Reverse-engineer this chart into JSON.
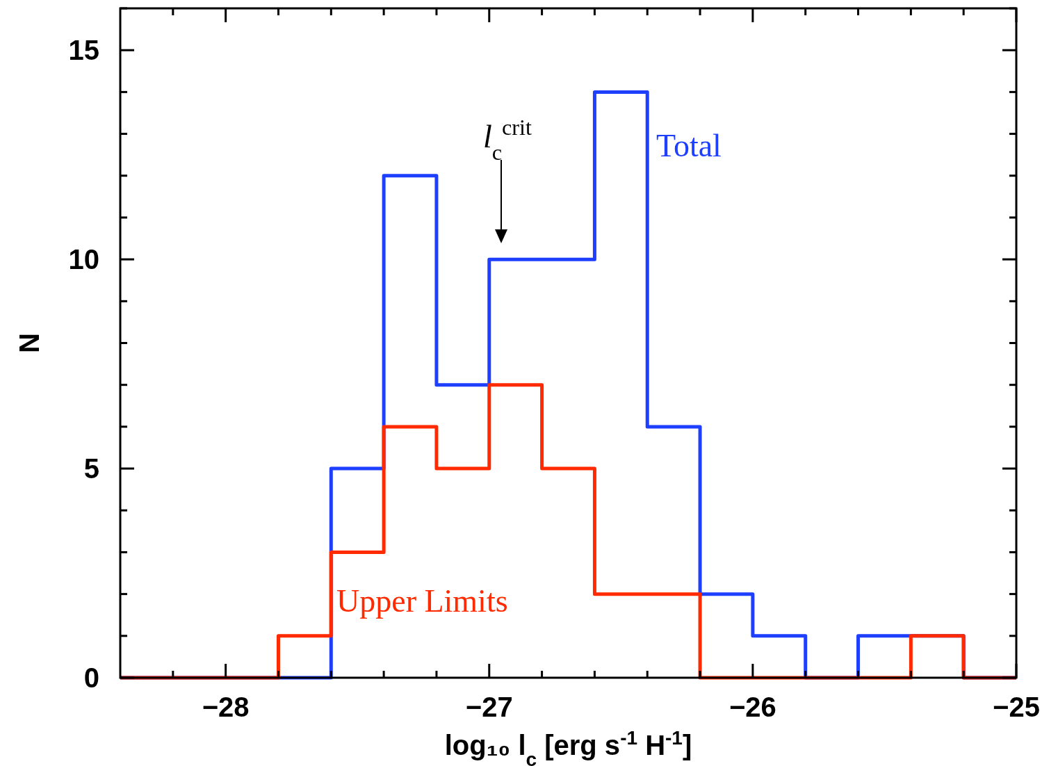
{
  "chart_data": {
    "type": "histogram",
    "xlabel": "log₁₀ l$_{c}$ [erg s$^{-1}$ H$^{-1}$]",
    "ylabel": "N",
    "bins": [
      -28.4,
      -28.2,
      -28.0,
      -27.8,
      -27.6,
      -27.4,
      -27.2,
      -27.0,
      -26.8,
      -26.6,
      -26.4,
      -26.2,
      -26.0,
      -25.8,
      -25.6,
      -25.4,
      -25.2,
      -25.0
    ],
    "series": [
      {
        "name": "Total",
        "color": "#1f3fff",
        "values": [
          0,
          0,
          0,
          0,
          5,
          12,
          7,
          10,
          10,
          14,
          6,
          2,
          1,
          0,
          1,
          1,
          0
        ]
      },
      {
        "name": "Upper Limits",
        "color": "#ff2a00",
        "values": [
          0,
          0,
          0,
          1,
          3,
          6,
          5,
          7,
          5,
          2,
          2,
          0,
          0,
          0,
          0,
          1,
          0
        ]
      }
    ],
    "xlim": [
      -28.4,
      -25.0
    ],
    "xticks": [
      {
        "value": -28.2,
        "label": null
      },
      {
        "value": -28,
        "label": "−28"
      },
      {
        "value": -27.8,
        "label": null
      },
      {
        "value": -27.6,
        "label": null
      },
      {
        "value": -27.4,
        "label": null
      },
      {
        "value": -27.2,
        "label": null
      },
      {
        "value": -27,
        "label": "−27"
      },
      {
        "value": -26.8,
        "label": null
      },
      {
        "value": -26.6,
        "label": null
      },
      {
        "value": -26.4,
        "label": null
      },
      {
        "value": -26.2,
        "label": null
      },
      {
        "value": -26,
        "label": "−26"
      },
      {
        "value": -25.8,
        "label": null
      },
      {
        "value": -25.6,
        "label": null
      },
      {
        "value": -25.4,
        "label": null
      },
      {
        "value": -25.2,
        "label": null
      },
      {
        "value": -25,
        "label": "−25"
      }
    ],
    "ylim": [
      0,
      16
    ],
    "yticks": [
      0,
      {
        "value": 1,
        "label": null
      },
      {
        "value": 2,
        "label": null
      },
      {
        "value": 3,
        "label": null
      },
      {
        "value": 4,
        "label": null
      },
      5,
      {
        "value": 6,
        "label": null
      },
      {
        "value": 7,
        "label": null
      },
      {
        "value": 8,
        "label": null
      },
      {
        "value": 9,
        "label": null
      },
      10,
      {
        "value": 11,
        "label": null
      },
      {
        "value": 12,
        "label": null
      },
      {
        "value": 13,
        "label": null
      },
      {
        "value": 14,
        "label": null
      },
      15,
      {
        "value": 16,
        "label": null
      }
    ],
    "annotations": [
      "l$_{c}$$^{crit}$"
    ]
  }
}
